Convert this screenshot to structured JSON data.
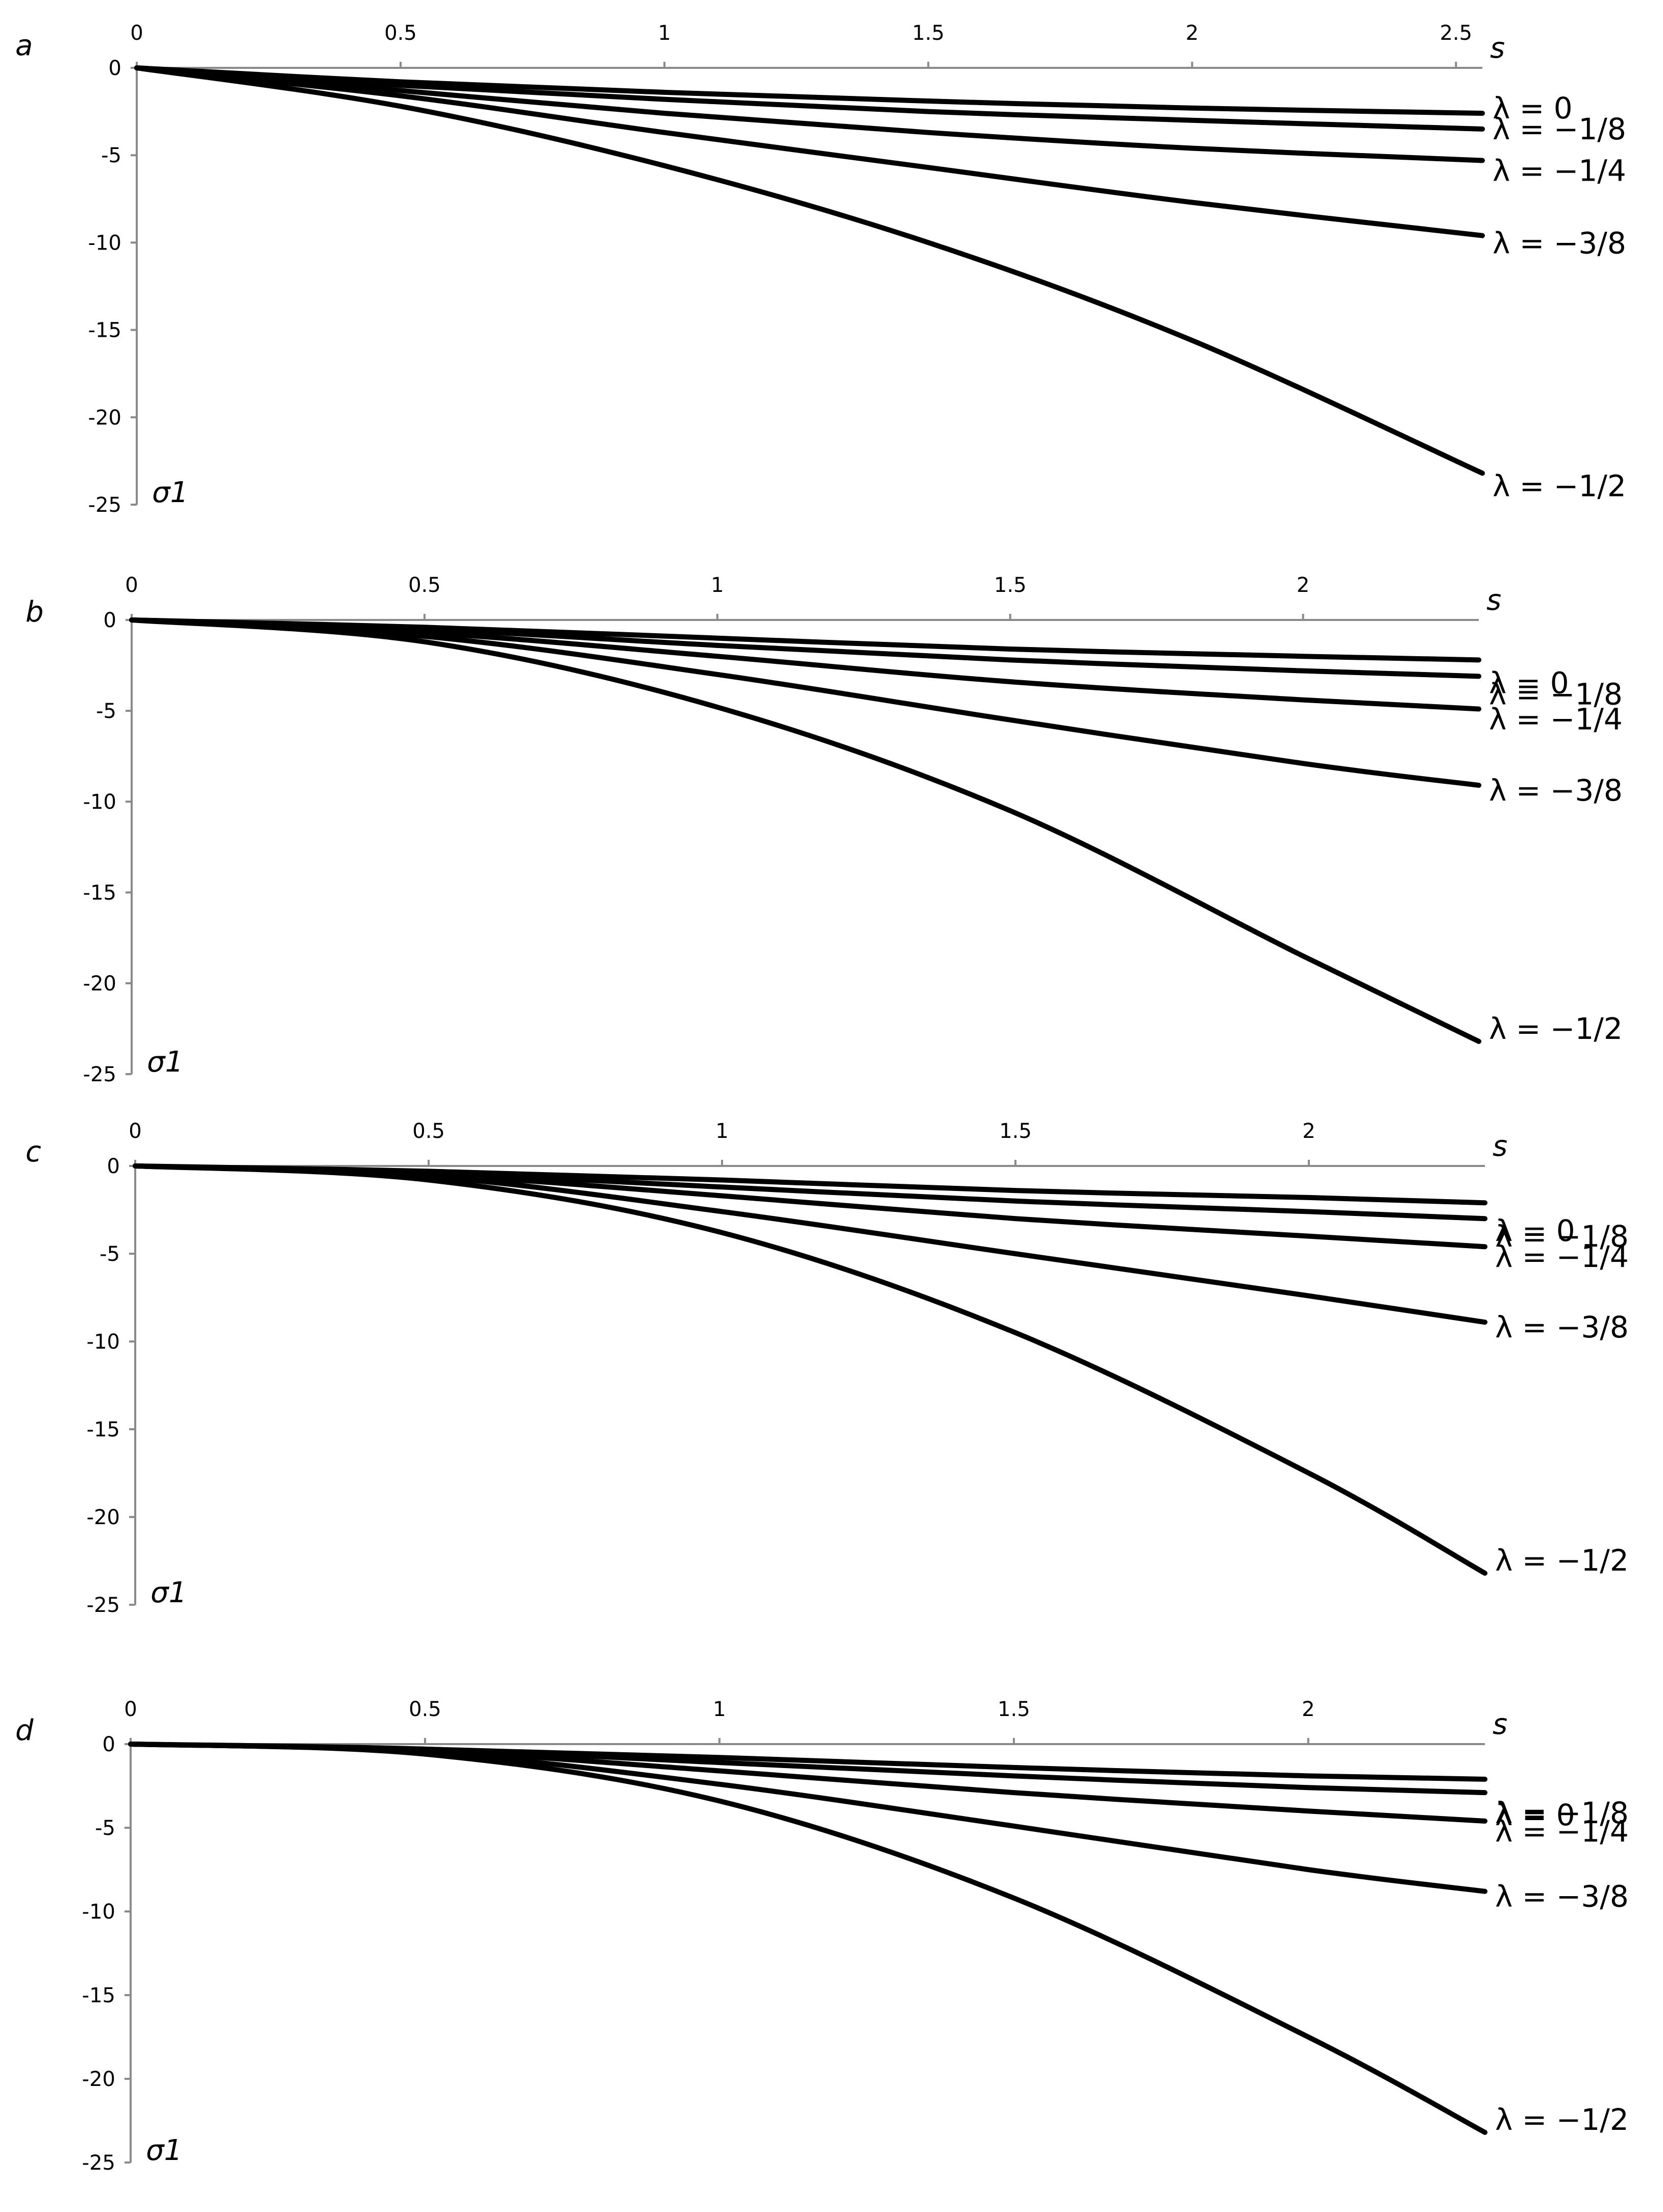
{
  "chart_data": [
    {
      "type": "line",
      "panel": "a",
      "xlabel": "s",
      "ylabel": "σ1",
      "xlim": [
        0,
        2.55
      ],
      "ylim": [
        -25,
        0
      ],
      "xticks": [
        "0",
        "0.5",
        "1",
        "1.5",
        "2",
        "2.5"
      ],
      "yticks": [
        "0",
        "-5",
        "-10",
        "-15",
        "-20",
        "-25"
      ],
      "series": [
        {
          "name": "λ = 0",
          "x": [
            0,
            0.5,
            1,
            1.5,
            2,
            2.55
          ],
          "y": [
            0,
            -0.8,
            -1.4,
            -1.9,
            -2.3,
            -2.6
          ]
        },
        {
          "name": "λ = −1/8",
          "x": [
            0,
            0.5,
            1,
            1.5,
            2,
            2.55
          ],
          "y": [
            0,
            -1.0,
            -1.8,
            -2.5,
            -3.0,
            -3.5
          ]
        },
        {
          "name": "λ = −1/4",
          "x": [
            0,
            0.5,
            1,
            1.5,
            2,
            2.55
          ],
          "y": [
            0,
            -1.3,
            -2.6,
            -3.7,
            -4.6,
            -5.3
          ]
        },
        {
          "name": "λ = −3/8",
          "x": [
            0,
            0.5,
            1,
            1.5,
            2,
            2.55
          ],
          "y": [
            0,
            -1.6,
            -3.7,
            -5.7,
            -7.7,
            -9.6
          ]
        },
        {
          "name": "λ = −1/2",
          "x": [
            0,
            0.5,
            1,
            1.5,
            2,
            2.55
          ],
          "y": [
            0,
            -2.2,
            -5.6,
            -10.0,
            -15.6,
            -23.2
          ]
        }
      ]
    },
    {
      "type": "line",
      "panel": "b",
      "xlabel": "s",
      "ylabel": "σ1",
      "xlim": [
        0,
        2.3
      ],
      "ylim": [
        -25,
        0
      ],
      "xticks": [
        "0",
        "0.5",
        "1",
        "1.5",
        "2"
      ],
      "yticks": [
        "0",
        "-5",
        "-10",
        "-15",
        "-20",
        "-25"
      ],
      "series": [
        {
          "name": "λ = 0",
          "x": [
            0,
            0.5,
            1,
            1.5,
            2,
            2.3
          ],
          "y": [
            0,
            -0.4,
            -1.0,
            -1.6,
            -2.0,
            -2.2
          ]
        },
        {
          "name": "λ = −1/8",
          "x": [
            0,
            0.5,
            1,
            1.5,
            2,
            2.3
          ],
          "y": [
            0,
            -0.5,
            -1.4,
            -2.2,
            -2.8,
            -3.1
          ]
        },
        {
          "name": "λ = −1/4",
          "x": [
            0,
            0.5,
            1,
            1.5,
            2,
            2.3
          ],
          "y": [
            0,
            -0.7,
            -2.0,
            -3.4,
            -4.4,
            -4.9
          ]
        },
        {
          "name": "λ = −3/8",
          "x": [
            0,
            0.5,
            1,
            1.5,
            2,
            2.3
          ],
          "y": [
            0,
            -0.9,
            -3.0,
            -5.5,
            -7.9,
            -9.1
          ]
        },
        {
          "name": "λ = −1/2",
          "x": [
            0,
            0.5,
            1,
            1.5,
            2,
            2.3
          ],
          "y": [
            0,
            -1.2,
            -4.8,
            -10.5,
            -18.5,
            -23.2
          ]
        }
      ]
    },
    {
      "type": "line",
      "panel": "c",
      "xlabel": "s",
      "ylabel": "σ1",
      "xlim": [
        0,
        2.3
      ],
      "ylim": [
        -25,
        0
      ],
      "xticks": [
        "0",
        "0.5",
        "1",
        "1.5",
        "2"
      ],
      "yticks": [
        "0",
        "-5",
        "-10",
        "-15",
        "-20",
        "-25"
      ],
      "series": [
        {
          "name": "λ = 0",
          "x": [
            0,
            0.5,
            1,
            1.5,
            2,
            2.3
          ],
          "y": [
            0,
            -0.3,
            -0.8,
            -1.4,
            -1.8,
            -2.1
          ]
        },
        {
          "name": "λ = −1/8",
          "x": [
            0,
            0.5,
            1,
            1.5,
            2,
            2.3
          ],
          "y": [
            0,
            -0.4,
            -1.2,
            -2.0,
            -2.6,
            -3.0
          ]
        },
        {
          "name": "λ = −1/4",
          "x": [
            0,
            0.5,
            1,
            1.5,
            2,
            2.3
          ],
          "y": [
            0,
            -0.5,
            -1.7,
            -3.0,
            -4.0,
            -4.6
          ]
        },
        {
          "name": "λ = −3/8",
          "x": [
            0,
            0.5,
            1,
            1.5,
            2,
            2.3
          ],
          "y": [
            0,
            -0.6,
            -2.6,
            -5.0,
            -7.4,
            -8.9
          ]
        },
        {
          "name": "λ = −1/2",
          "x": [
            0,
            0.5,
            1,
            1.5,
            2,
            2.3
          ],
          "y": [
            0,
            -0.8,
            -3.8,
            -9.5,
            -17.5,
            -23.2
          ]
        }
      ]
    },
    {
      "type": "line",
      "panel": "d",
      "xlabel": "s",
      "ylabel": "σ1",
      "xlim": [
        0,
        2.3
      ],
      "ylim": [
        -25,
        0
      ],
      "xticks": [
        "0",
        "0.5",
        "1",
        "1.5",
        "2"
      ],
      "yticks": [
        "0",
        "-5",
        "-10",
        "-15",
        "-20",
        "-25"
      ],
      "series": [
        {
          "name": "λ = 0",
          "x": [
            0,
            0.5,
            1,
            1.5,
            2,
            2.3
          ],
          "y": [
            0,
            -0.3,
            -0.8,
            -1.4,
            -1.9,
            -2.1
          ]
        },
        {
          "name": "λ = −1/8",
          "x": [
            0,
            0.5,
            1,
            1.5,
            2,
            2.3
          ],
          "y": [
            0,
            -0.3,
            -1.1,
            -1.9,
            -2.6,
            -2.9
          ]
        },
        {
          "name": "λ = −1/4",
          "x": [
            0,
            0.5,
            1,
            1.5,
            2,
            2.3
          ],
          "y": [
            0,
            -0.4,
            -1.6,
            -2.9,
            -4.0,
            -4.6
          ]
        },
        {
          "name": "λ = −3/8",
          "x": [
            0,
            0.5,
            1,
            1.5,
            2,
            2.3
          ],
          "y": [
            0,
            -0.5,
            -2.4,
            -4.9,
            -7.5,
            -8.8
          ]
        },
        {
          "name": "λ = −1/2",
          "x": [
            0,
            0.5,
            1,
            1.5,
            2,
            2.3
          ],
          "y": [
            0,
            -0.6,
            -3.4,
            -9.2,
            -17.5,
            -23.2
          ]
        }
      ]
    }
  ]
}
